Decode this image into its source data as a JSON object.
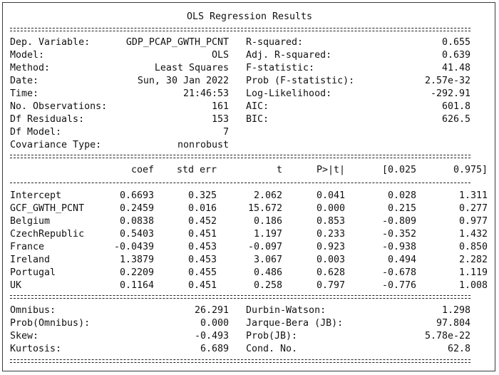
{
  "title": "OLS Regression Results",
  "summary_left": [
    {
      "label": "Dep. Variable:",
      "value": "GDP_PCAP_GWTH_PCNT"
    },
    {
      "label": "Model:",
      "value": "OLS"
    },
    {
      "label": "Method:",
      "value": "Least Squares"
    },
    {
      "label": "Date:",
      "value": "Sun, 30 Jan 2022"
    },
    {
      "label": "Time:",
      "value": "21:46:53"
    },
    {
      "label": "No. Observations:",
      "value": "161"
    },
    {
      "label": "Df Residuals:",
      "value": "153"
    },
    {
      "label": "Df Model:",
      "value": "7"
    },
    {
      "label": "Covariance Type:",
      "value": "nonrobust"
    }
  ],
  "summary_right": [
    {
      "label": "R-squared:",
      "value": "0.655"
    },
    {
      "label": "Adj. R-squared:",
      "value": "0.639"
    },
    {
      "label": "F-statistic:",
      "value": "41.48"
    },
    {
      "label": "Prob (F-statistic):",
      "value": "2.57e-32"
    },
    {
      "label": "Log-Likelihood:",
      "value": "-292.91"
    },
    {
      "label": "AIC:",
      "value": "601.8"
    },
    {
      "label": "BIC:",
      "value": "626.5"
    }
  ],
  "coef_headers": [
    "coef",
    "std err",
    "t",
    "P>|t|",
    "[0.025",
    "0.975]"
  ],
  "coef_rows": [
    {
      "name": "Intercept",
      "coef": "0.6693",
      "std_err": "0.325",
      "t": "2.062",
      "p": "0.041",
      "lo": "0.028",
      "hi": "1.311"
    },
    {
      "name": "GCF_GWTH_PCNT",
      "coef": "0.2459",
      "std_err": "0.016",
      "t": "15.672",
      "p": "0.000",
      "lo": "0.215",
      "hi": "0.277"
    },
    {
      "name": "Belgium",
      "coef": "0.0838",
      "std_err": "0.452",
      "t": "0.186",
      "p": "0.853",
      "lo": "-0.809",
      "hi": "0.977"
    },
    {
      "name": "CzechRepublic",
      "coef": "0.5403",
      "std_err": "0.451",
      "t": "1.197",
      "p": "0.233",
      "lo": "-0.352",
      "hi": "1.432"
    },
    {
      "name": "France",
      "coef": "-0.0439",
      "std_err": "0.453",
      "t": "-0.097",
      "p": "0.923",
      "lo": "-0.938",
      "hi": "0.850"
    },
    {
      "name": "Ireland",
      "coef": "1.3879",
      "std_err": "0.453",
      "t": "3.067",
      "p": "0.003",
      "lo": "0.494",
      "hi": "2.282"
    },
    {
      "name": "Portugal",
      "coef": "0.2209",
      "std_err": "0.455",
      "t": "0.486",
      "p": "0.628",
      "lo": "-0.678",
      "hi": "1.119"
    },
    {
      "name": "UK",
      "coef": "0.1164",
      "std_err": "0.451",
      "t": "0.258",
      "p": "0.797",
      "lo": "-0.776",
      "hi": "1.008"
    }
  ],
  "diag_left": [
    {
      "label": "Omnibus:",
      "value": "26.291"
    },
    {
      "label": "Prob(Omnibus):",
      "value": "0.000"
    },
    {
      "label": "Skew:",
      "value": "-0.493"
    },
    {
      "label": "Kurtosis:",
      "value": "6.689"
    }
  ],
  "diag_right": [
    {
      "label": "Durbin-Watson:",
      "value": "1.298"
    },
    {
      "label": "Jarque-Bera (JB):",
      "value": "97.804"
    },
    {
      "label": "Prob(JB):",
      "value": "5.78e-22"
    },
    {
      "label": "Cond. No.",
      "value": "62.8"
    }
  ]
}
